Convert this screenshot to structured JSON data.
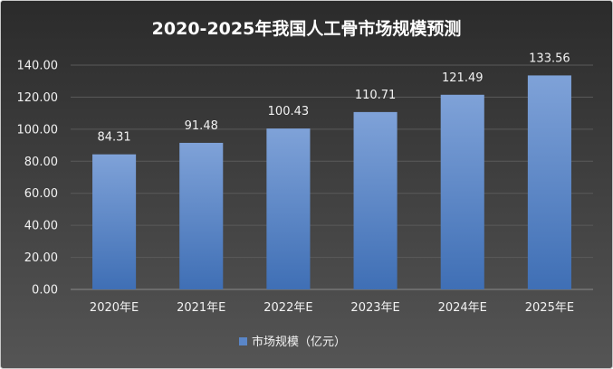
{
  "chart_data": {
    "type": "bar",
    "title": "2020-2025年我国人工骨市场规模预测",
    "xlabel": "",
    "ylabel": "",
    "categories": [
      "2020年E",
      "2021年E",
      "2022年E",
      "2023年E",
      "2024年E",
      "2025年E"
    ],
    "series": [
      {
        "name": "市场规模（亿元）",
        "values": [
          84.31,
          91.48,
          100.43,
          110.71,
          121.49,
          133.56
        ],
        "labels": [
          "84.31",
          "91.48",
          "100.43",
          "110.71",
          "121.49",
          "133.56"
        ]
      }
    ],
    "ylim": [
      0,
      140
    ],
    "yticks": [
      "0.00",
      "20.00",
      "40.00",
      "60.00",
      "80.00",
      "100.00",
      "120.00",
      "140.00"
    ],
    "grid": true,
    "legend_position": "bottom",
    "colors": {
      "background_top": "#2b2b2b",
      "background_bottom": "#555555",
      "bar_top": "#7fa2d8",
      "bar_bottom": "#3f6fb5",
      "legend_swatch": "#5a86c8"
    }
  }
}
